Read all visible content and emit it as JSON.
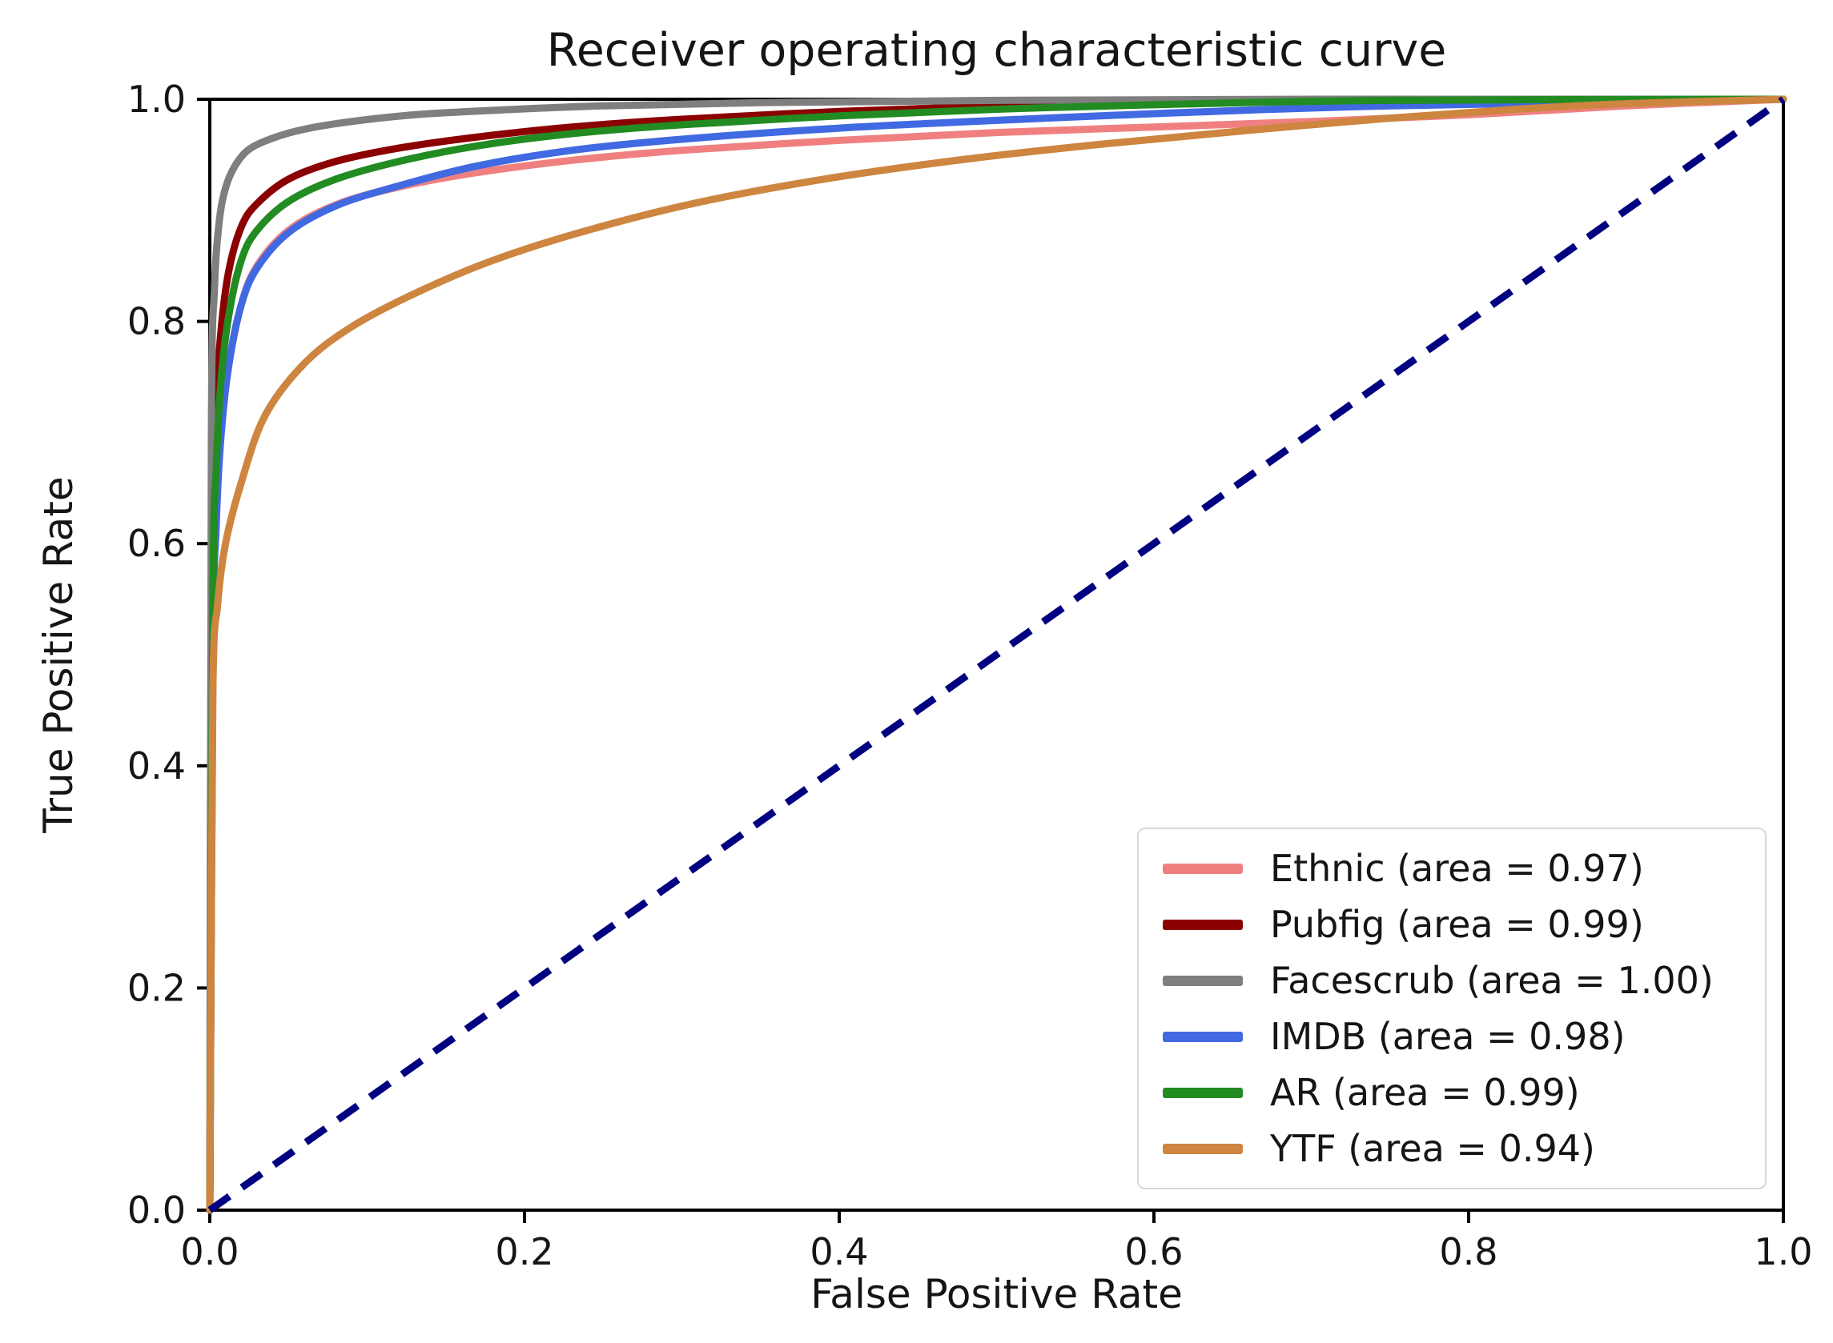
{
  "chart_data": {
    "type": "line",
    "title": "Receiver operating characteristic curve",
    "xlabel": "False Positive Rate",
    "ylabel": "True Positive Rate",
    "xlim": [
      0.0,
      1.0
    ],
    "ylim": [
      0.0,
      1.0
    ],
    "x_ticks": [
      0.0,
      0.2,
      0.4,
      0.6,
      0.8,
      1.0
    ],
    "y_ticks": [
      0.0,
      0.2,
      0.4,
      0.6,
      0.8,
      1.0
    ],
    "grid": false,
    "legend": {
      "position": "lower right",
      "border_color": "#d8d8d8",
      "background": "#ffffff"
    },
    "reference_line": {
      "name": "chance-diagonal",
      "color": "#000080",
      "style": "dashed",
      "x": [
        0.0,
        1.0
      ],
      "y": [
        0.0,
        1.0
      ]
    },
    "series": [
      {
        "name": "Ethnic",
        "label": "Ethnic (area = 0.97)",
        "auc": 0.97,
        "color": "#F08080",
        "x": [
          0,
          0.002,
          0.004,
          0.007,
          0.012,
          0.02,
          0.03,
          0.05,
          0.08,
          0.12,
          0.17,
          0.23,
          0.3,
          0.4,
          0.5,
          0.6,
          0.7,
          0.8,
          0.9,
          1.0
        ],
        "y": [
          0,
          0.52,
          0.62,
          0.7,
          0.76,
          0.815,
          0.85,
          0.882,
          0.905,
          0.921,
          0.934,
          0.945,
          0.954,
          0.963,
          0.97,
          0.975,
          0.98,
          0.986,
          0.994,
          1.0
        ]
      },
      {
        "name": "Pubfig",
        "label": "Pubfig (area = 0.99)",
        "auc": 0.99,
        "color": "#8B0000",
        "x": [
          0,
          0.002,
          0.004,
          0.007,
          0.012,
          0.02,
          0.03,
          0.05,
          0.08,
          0.12,
          0.17,
          0.23,
          0.3,
          0.4,
          0.5,
          0.6,
          0.75,
          1.0
        ],
        "y": [
          0,
          0.6,
          0.72,
          0.79,
          0.845,
          0.885,
          0.906,
          0.928,
          0.944,
          0.956,
          0.966,
          0.975,
          0.982,
          0.989,
          0.994,
          0.997,
          0.999,
          1.0
        ]
      },
      {
        "name": "Facescrub",
        "label": "Facescrub (area = 1.00)",
        "auc": 1.0,
        "color": "#7F7F7F",
        "x": [
          0,
          0.001,
          0.003,
          0.006,
          0.01,
          0.016,
          0.025,
          0.04,
          0.06,
          0.09,
          0.13,
          0.18,
          0.25,
          0.35,
          0.5,
          0.7,
          1.0
        ],
        "y": [
          0,
          0.7,
          0.83,
          0.89,
          0.92,
          0.94,
          0.955,
          0.965,
          0.973,
          0.98,
          0.986,
          0.99,
          0.994,
          0.997,
          0.999,
          1.0,
          1.0
        ]
      },
      {
        "name": "IMDB",
        "label": "IMDB (area = 0.98)",
        "auc": 0.98,
        "color": "#4169E1",
        "x": [
          0,
          0.002,
          0.004,
          0.007,
          0.012,
          0.02,
          0.03,
          0.05,
          0.08,
          0.12,
          0.17,
          0.23,
          0.3,
          0.4,
          0.5,
          0.6,
          0.75,
          1.0
        ],
        "y": [
          0,
          0.5,
          0.615,
          0.695,
          0.76,
          0.815,
          0.848,
          0.88,
          0.904,
          0.922,
          0.94,
          0.954,
          0.964,
          0.974,
          0.981,
          0.987,
          0.994,
          1.0
        ]
      },
      {
        "name": "AR",
        "label": "AR (area = 0.99)",
        "auc": 0.99,
        "color": "#228B22",
        "x": [
          0,
          0.002,
          0.004,
          0.007,
          0.012,
          0.02,
          0.03,
          0.05,
          0.08,
          0.12,
          0.17,
          0.23,
          0.3,
          0.4,
          0.5,
          0.6,
          0.75,
          1.0
        ],
        "y": [
          0,
          0.55,
          0.665,
          0.745,
          0.805,
          0.855,
          0.882,
          0.908,
          0.928,
          0.944,
          0.958,
          0.969,
          0.977,
          0.985,
          0.991,
          0.995,
          0.999,
          1.0
        ]
      },
      {
        "name": "YTF",
        "label": "YTF (area = 0.94)",
        "auc": 0.94,
        "color": "#CD853F",
        "x": [
          0,
          0.002,
          0.005,
          0.01,
          0.02,
          0.035,
          0.06,
          0.09,
          0.13,
          0.18,
          0.24,
          0.31,
          0.39,
          0.48,
          0.57,
          0.66,
          0.75,
          0.83,
          0.9,
          1.0
        ],
        "y": [
          0,
          0.47,
          0.545,
          0.6,
          0.655,
          0.715,
          0.762,
          0.795,
          0.825,
          0.855,
          0.882,
          0.907,
          0.928,
          0.946,
          0.96,
          0.972,
          0.983,
          0.991,
          0.996,
          1.0
        ]
      }
    ]
  }
}
